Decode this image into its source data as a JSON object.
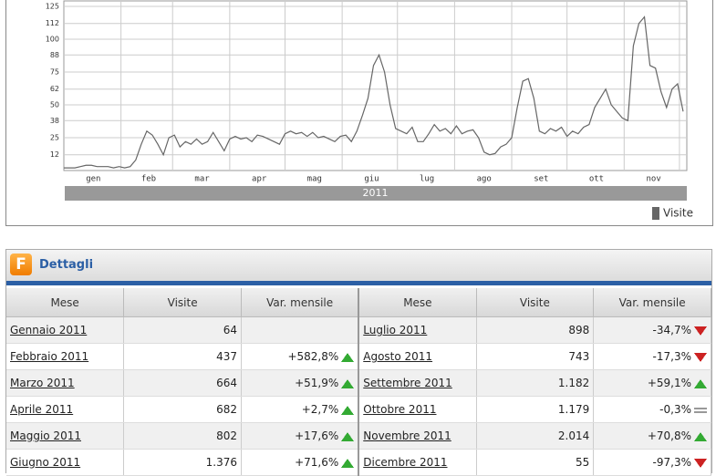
{
  "chart_data": {
    "type": "line",
    "x": [
      0,
      3,
      6,
      9,
      12,
      15,
      18,
      21,
      24,
      27,
      30,
      33,
      36,
      39,
      42,
      45,
      48,
      51,
      54,
      57,
      60,
      63,
      66,
      69,
      72,
      75,
      78,
      81,
      84,
      87,
      90,
      93,
      96,
      99,
      102,
      105,
      108,
      111,
      114,
      117,
      120,
      123,
      126,
      129,
      132,
      135,
      138,
      141,
      144,
      147,
      150,
      153,
      156,
      159,
      162,
      165,
      168,
      171,
      174,
      177,
      180,
      183,
      186,
      189,
      192,
      195,
      198,
      201,
      204,
      207,
      210,
      213,
      216,
      219,
      222,
      225,
      228,
      231,
      234,
      237,
      240,
      243,
      246,
      249,
      252,
      255,
      258,
      261,
      264,
      267,
      270,
      273,
      276,
      279,
      282,
      285,
      288,
      291,
      294,
      297,
      300,
      303,
      306,
      309,
      312,
      315,
      318,
      321,
      324,
      327,
      330,
      333,
      336
    ],
    "series": [
      {
        "name": "Visite",
        "color": "#666666",
        "values": [
          2,
          2,
          2,
          3,
          4,
          4,
          3,
          3,
          3,
          2,
          3,
          2,
          3,
          8,
          20,
          30,
          27,
          20,
          12,
          25,
          27,
          18,
          22,
          20,
          24,
          20,
          22,
          29,
          22,
          15,
          24,
          26,
          24,
          25,
          22,
          27,
          26,
          24,
          22,
          20,
          28,
          30,
          28,
          29,
          26,
          29,
          25,
          26,
          24,
          22,
          26,
          27,
          22,
          30,
          42,
          55,
          80,
          88,
          75,
          50,
          32,
          30,
          28,
          33,
          22,
          22,
          28,
          35,
          30,
          32,
          28,
          34,
          28,
          30,
          31,
          25,
          14,
          12,
          13,
          18,
          20,
          25,
          48,
          68,
          70,
          55,
          30,
          28,
          32,
          30,
          33,
          26,
          30,
          28,
          33,
          35,
          48,
          55,
          62,
          50,
          45,
          40,
          38,
          95,
          112,
          117,
          80,
          78,
          60,
          48,
          62,
          66,
          45
        ]
      }
    ],
    "xlim": [
      0,
      338
    ],
    "ylim": [
      0,
      125
    ],
    "xticks": [
      {
        "value": 16,
        "label": "gen"
      },
      {
        "value": 46,
        "label": "feb"
      },
      {
        "value": 75,
        "label": "mar"
      },
      {
        "value": 106,
        "label": "apr"
      },
      {
        "value": 136,
        "label": "mag"
      },
      {
        "value": 167,
        "label": "giu"
      },
      {
        "value": 197,
        "label": "lug"
      },
      {
        "value": 228,
        "label": "ago"
      },
      {
        "value": 259,
        "label": "set"
      },
      {
        "value": 289,
        "label": "ott"
      },
      {
        "value": 320,
        "label": "nov"
      }
    ],
    "xgrid": [
      31,
      59,
      90,
      120,
      151,
      181,
      212,
      243,
      273,
      304,
      334
    ],
    "yticks": [
      12,
      25,
      38,
      50,
      62,
      75,
      88,
      100,
      112,
      125
    ],
    "year_label": "2011",
    "grid": true
  },
  "panel": {
    "title": "Dettagli",
    "icon": "F",
    "columns": [
      "Mese",
      "Visite",
      "Var. mensile",
      "Mese",
      "Visite",
      "Var. mensile"
    ],
    "rows": [
      [
        "Gennaio 2011",
        "64",
        "",
        "Luglio 2011",
        "898",
        "-34,7%"
      ],
      [
        "Febbraio 2011",
        "437",
        "+582,8%",
        "Agosto 2011",
        "743",
        "-17,3%"
      ],
      [
        "Marzo 2011",
        "664",
        "+51,9%",
        "Settembre 2011",
        "1.182",
        "+59,1%"
      ],
      [
        "Aprile 2011",
        "682",
        "+2,7%",
        "Ottobre 2011",
        "1.179",
        "-0,3%"
      ],
      [
        "Maggio 2011",
        "802",
        "+17,6%",
        "Novembre 2011",
        "2.014",
        "+70,8%"
      ],
      [
        "Giugno 2011",
        "1.376",
        "+71,6%",
        "Dicembre 2011",
        "55",
        "-97,3%"
      ]
    ]
  }
}
